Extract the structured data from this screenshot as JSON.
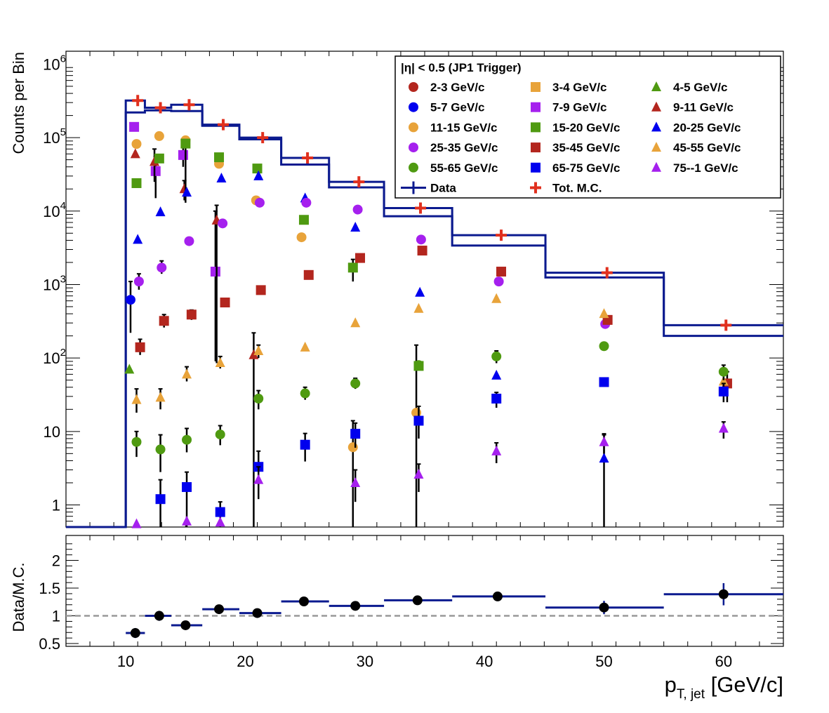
{
  "chart_data": [
    {
      "type": "scatter",
      "panel": "top",
      "title": "",
      "ylabel": "Counts per Bin",
      "yscale": "log",
      "xlim": [
        5,
        65
      ],
      "ylim": [
        0.5,
        1500000
      ],
      "y_ticks": [
        {
          "value": 1,
          "base": "1",
          "exp": ""
        },
        {
          "value": 10,
          "base": "10",
          "exp": ""
        },
        {
          "value": 100,
          "base": "10",
          "exp": "2"
        },
        {
          "value": 1000,
          "base": "10",
          "exp": "3"
        },
        {
          "value": 10000,
          "base": "10",
          "exp": "4"
        },
        {
          "value": 100000,
          "base": "10",
          "exp": "5"
        },
        {
          "value": 1000000,
          "base": "10",
          "exp": "6"
        }
      ],
      "legend": {
        "header": "|η| < 0.5 (JP1 Trigger)",
        "position": "top-right",
        "entries": [
          {
            "label": "2-3 GeV/c",
            "marker": "circle",
            "color": "#b3261e"
          },
          {
            "label": "3-4 GeV/c",
            "marker": "square",
            "color": "#e8a33a"
          },
          {
            "label": "4-5 GeV/c",
            "marker": "triangle",
            "color": "#4f9a11"
          },
          {
            "label": "5-7 GeV/c",
            "marker": "circle",
            "color": "#0000ee"
          },
          {
            "label": "7-9 GeV/c",
            "marker": "square",
            "color": "#a520ee"
          },
          {
            "label": "9-11 GeV/c",
            "marker": "triangle",
            "color": "#b3261e"
          },
          {
            "label": "11-15 GeV/c",
            "marker": "circle",
            "color": "#e8a33a"
          },
          {
            "label": "15-20 GeV/c",
            "marker": "square",
            "color": "#4f9a11"
          },
          {
            "label": "20-25 GeV/c",
            "marker": "triangle",
            "color": "#0000ee"
          },
          {
            "label": "25-35 GeV/c",
            "marker": "circle",
            "color": "#a520ee"
          },
          {
            "label": "35-45 GeV/c",
            "marker": "square",
            "color": "#b3261e"
          },
          {
            "label": "45-55 GeV/c",
            "marker": "triangle",
            "color": "#e8a33a"
          },
          {
            "label": "55-65 GeV/c",
            "marker": "circle",
            "color": "#4f9a11"
          },
          {
            "label": "65-75 GeV/c",
            "marker": "square",
            "color": "#0000ee"
          },
          {
            "label": "75--1 GeV/c",
            "marker": "triangle",
            "color": "#a520ee"
          },
          {
            "label": "Data",
            "marker": "cross",
            "color": "#0b1a8f"
          },
          {
            "label": "Tot. M.C.",
            "marker": "plus",
            "color": "#e0301e"
          }
        ]
      },
      "data_hist": {
        "name": "Data",
        "color": "#0b1a8f",
        "bins": [
          {
            "lo": 5.0,
            "hi": 10.0,
            "value": 0.5
          },
          {
            "lo": 10.0,
            "hi": 11.6,
            "value": 220000
          },
          {
            "lo": 11.6,
            "hi": 13.8,
            "value": 235000
          },
          {
            "lo": 13.8,
            "hi": 16.4,
            "value": 230000
          },
          {
            "lo": 16.4,
            "hi": 19.5,
            "value": 145000
          },
          {
            "lo": 19.5,
            "hi": 23.0,
            "value": 95000
          },
          {
            "lo": 23.0,
            "hi": 27.0,
            "value": 43000
          },
          {
            "lo": 27.0,
            "hi": 31.6,
            "value": 21000
          },
          {
            "lo": 31.6,
            "hi": 37.3,
            "value": 8500
          },
          {
            "lo": 37.3,
            "hi": 45.1,
            "value": 3400
          },
          {
            "lo": 45.1,
            "hi": 55.0,
            "value": 1250
          },
          {
            "lo": 55.0,
            "hi": 65.0,
            "value": 200
          }
        ],
        "mc_bins": [
          {
            "lo": 10.0,
            "hi": 11.6,
            "value": 320000
          },
          {
            "lo": 11.6,
            "hi": 13.8,
            "value": 255000
          },
          {
            "lo": 13.8,
            "hi": 16.4,
            "value": 280000
          },
          {
            "lo": 16.4,
            "hi": 19.5,
            "value": 150000
          },
          {
            "lo": 19.5,
            "hi": 23.0,
            "value": 100000
          },
          {
            "lo": 23.0,
            "hi": 27.0,
            "value": 53000
          },
          {
            "lo": 27.0,
            "hi": 31.6,
            "value": 25000
          },
          {
            "lo": 31.6,
            "hi": 37.3,
            "value": 11000
          },
          {
            "lo": 37.3,
            "hi": 45.1,
            "value": 4700
          },
          {
            "lo": 45.1,
            "hi": 55.0,
            "value": 1450
          },
          {
            "lo": 55.0,
            "hi": 65.0,
            "value": 280
          }
        ]
      },
      "series": [
        {
          "name": "2-3 GeV/c",
          "marker": "circle",
          "color": "#b3261e",
          "x": [],
          "y": []
        },
        {
          "name": "3-4 GeV/c",
          "marker": "square",
          "color": "#e8a33a",
          "x": [],
          "y": []
        },
        {
          "name": "4-5 GeV/c",
          "marker": "triangle",
          "color": "#4f9a11",
          "x": [
            10.3
          ],
          "y": [
            70
          ]
        },
        {
          "name": "5-7 GeV/c",
          "marker": "circle",
          "color": "#0000ee",
          "x": [
            10.4
          ],
          "y": [
            620
          ],
          "err": [
            [
              220,
              1100
            ]
          ]
        },
        {
          "name": "7-9 GeV/c",
          "marker": "square",
          "color": "#a520ee",
          "x": [
            10.7,
            12.5,
            14.8,
            17.5
          ],
          "y": [
            140000,
            35000,
            58000,
            1500
          ],
          "err": [
            null,
            [
              15000,
              55000
            ],
            [
              40000,
              75000
            ],
            [
              90,
              10000
            ]
          ]
        },
        {
          "name": "9-11 GeV/c",
          "marker": "triangle",
          "color": "#b3261e",
          "x": [
            10.8,
            12.4,
            14.9,
            17.6,
            20.7
          ],
          "y": [
            60000,
            47000,
            20000,
            7500,
            110
          ],
          "err": [
            null,
            [
              25000,
              70000
            ],
            [
              14000,
              26000
            ],
            [
              85,
              12000
            ],
            [
              0.5,
              220
            ]
          ]
        },
        {
          "name": "11-15 GeV/c",
          "marker": "circle",
          "color": "#e8a33a",
          "x": [
            10.9,
            12.8,
            15.0,
            17.8,
            20.9,
            24.7,
            29.0,
            34.3
          ],
          "y": [
            82000,
            105000,
            92000,
            44000,
            14000,
            4400,
            6.1,
            18
          ],
          "err": [
            null,
            null,
            [
              13000,
              100000
            ],
            null,
            null,
            null,
            [
              0.5,
              14
            ],
            [
              0.5,
              150
            ]
          ]
        },
        {
          "name": "15-20 GeV/c",
          "marker": "square",
          "color": "#4f9a11",
          "x": [
            10.9,
            12.8,
            15.0,
            17.8,
            21.0,
            24.9,
            29.0,
            34.5
          ],
          "y": [
            24000,
            52000,
            83000,
            54000,
            38000,
            7600,
            1700,
            78
          ],
          "err": [
            null,
            null,
            null,
            null,
            null,
            null,
            [
              1100,
              2200
            ],
            null
          ]
        },
        {
          "name": "20-25 GeV/c",
          "marker": "triangle",
          "color": "#0000ee",
          "x": [
            11.0,
            12.9,
            15.1,
            18.0,
            21.1,
            25.0,
            29.2,
            34.6,
            41.0,
            50.0
          ],
          "y": [
            4100,
            9700,
            18000,
            28000,
            30000,
            15000,
            6000,
            780,
            58,
            4.3
          ],
          "err": [
            null,
            null,
            null,
            null,
            null,
            null,
            null,
            null,
            null,
            [
              0.5,
              9
            ]
          ]
        },
        {
          "name": "25-35 GeV/c",
          "marker": "circle",
          "color": "#a520ee",
          "x": [
            11.1,
            13.0,
            15.3,
            18.1,
            21.2,
            25.1,
            29.4,
            34.7,
            41.2,
            50.1
          ],
          "y": [
            1100,
            1700,
            3900,
            6800,
            13000,
            13000,
            10500,
            4100,
            1100,
            290
          ],
          "err": [
            [
              850,
              1400
            ],
            [
              1400,
              2100
            ],
            null,
            null,
            null,
            null,
            null,
            null,
            null,
            null
          ]
        },
        {
          "name": "35-45 GeV/c",
          "marker": "square",
          "color": "#b3261e",
          "x": [
            11.2,
            13.2,
            15.5,
            18.3,
            21.3,
            25.3,
            29.6,
            34.8,
            41.4,
            50.3,
            60.3
          ],
          "y": [
            140,
            320,
            390,
            570,
            840,
            1350,
            2300,
            2900,
            1500,
            330,
            45
          ],
          "err": [
            [
              110,
              180
            ],
            [
              260,
              390
            ],
            [
              330,
              450
            ],
            null,
            null,
            null,
            null,
            null,
            null,
            null,
            [
              25,
              65
            ]
          ]
        },
        {
          "name": "45-55 GeV/c",
          "marker": "triangle",
          "color": "#e8a33a",
          "x": [
            10.9,
            12.9,
            15.1,
            17.9,
            21.1,
            25.0,
            29.2,
            34.5,
            41.0,
            50.0,
            60.0
          ],
          "y": [
            27,
            29,
            60,
            86,
            125,
            140,
            300,
            470,
            640,
            400,
            48
          ],
          "err": [
            [
              18,
              38
            ],
            [
              20,
              38
            ],
            [
              48,
              76
            ],
            [
              72,
              105
            ],
            [
              100,
              150
            ],
            null,
            null,
            null,
            null,
            null,
            null
          ]
        },
        {
          "name": "55-65 GeV/c",
          "marker": "circle",
          "color": "#4f9a11",
          "x": [
            10.9,
            12.9,
            15.1,
            17.9,
            21.1,
            25.0,
            29.2,
            34.5,
            41.0,
            50.0,
            60.0
          ],
          "y": [
            7.2,
            5.7,
            7.7,
            9.1,
            28,
            33,
            45,
            80,
            105,
            145,
            65
          ],
          "err": [
            [
              4.5,
              10
            ],
            [
              2.8,
              9
            ],
            [
              5.2,
              11
            ],
            [
              6.5,
              12
            ],
            [
              20,
              36
            ],
            [
              27,
              40
            ],
            [
              38,
              53
            ],
            null,
            [
              85,
              125
            ],
            null,
            [
              50,
              80
            ]
          ]
        },
        {
          "name": "65-75 GeV/c",
          "marker": "square",
          "color": "#0000ee",
          "x": [
            12.9,
            15.1,
            17.9,
            21.1,
            25.0,
            29.2,
            34.5,
            41.0,
            50.0,
            60.0
          ],
          "y": [
            1.2,
            1.75,
            0.8,
            3.3,
            6.6,
            9.3,
            14,
            28,
            47,
            35
          ],
          "err": [
            [
              0.5,
              2.2
            ],
            [
              0.5,
              2.8
            ],
            [
              0.5,
              1.1
            ],
            [
              1.8,
              5.4
            ],
            [
              3.9,
              9.4
            ],
            [
              6,
              13
            ],
            [
              8,
              22
            ],
            [
              21,
              34
            ],
            null,
            [
              25,
              45
            ]
          ]
        },
        {
          "name": "75--1 GeV/c",
          "marker": "triangle",
          "color": "#a520ee",
          "x": [
            10.9,
            15.1,
            17.9,
            21.1,
            29.2,
            34.5,
            41.0,
            50.0,
            60.0
          ],
          "y": [
            0.55,
            0.6,
            0.58,
            2.2,
            2.0,
            2.6,
            5.4,
            7.2,
            11
          ],
          "err": [
            null,
            null,
            null,
            [
              1.2,
              3.3
            ],
            [
              1.1,
              3
            ],
            [
              1.5,
              3.6
            ],
            [
              3.7,
              7
            ],
            [
              5,
              9.3
            ],
            [
              8,
              13.5
            ]
          ]
        }
      ]
    },
    {
      "type": "scatter",
      "panel": "bottom",
      "xlabel_main": "p",
      "xlabel_sub": "T, jet",
      "xlabel_unit": " [GeV/c]",
      "ylabel": "Data/M.C.",
      "xlim": [
        5,
        65
      ],
      "ylim": [
        0.45,
        2.45
      ],
      "x_ticks": [
        "10",
        "20",
        "30",
        "40",
        "50",
        "60"
      ],
      "x_tick_values": [
        10,
        20,
        30,
        40,
        50,
        60
      ],
      "y_ticks": [
        "0.5",
        "1",
        "1.5",
        "2"
      ],
      "y_tick_values": [
        0.5,
        1,
        1.5,
        2
      ],
      "reference_line": 1,
      "ratio": [
        {
          "lo": 10.0,
          "hi": 11.6,
          "x": 10.8,
          "y": 0.69,
          "e": 0.09
        },
        {
          "lo": 11.6,
          "hi": 13.8,
          "x": 12.8,
          "y": 1.0,
          "e": 0.09
        },
        {
          "lo": 13.8,
          "hi": 16.4,
          "x": 15.0,
          "y": 0.83,
          "e": 0.08
        },
        {
          "lo": 16.4,
          "hi": 19.5,
          "x": 17.8,
          "y": 1.12,
          "e": 0.04
        },
        {
          "lo": 19.5,
          "hi": 23.0,
          "x": 21.0,
          "y": 1.05,
          "e": 0.04
        },
        {
          "lo": 23.0,
          "hi": 27.0,
          "x": 24.9,
          "y": 1.26,
          "e": 0.04
        },
        {
          "lo": 27.0,
          "hi": 31.6,
          "x": 29.2,
          "y": 1.18,
          "e": 0.04
        },
        {
          "lo": 31.6,
          "hi": 37.3,
          "x": 34.4,
          "y": 1.28,
          "e": 0.05
        },
        {
          "lo": 37.3,
          "hi": 45.1,
          "x": 41.1,
          "y": 1.35,
          "e": 0.08
        },
        {
          "lo": 45.1,
          "hi": 55.0,
          "x": 50.0,
          "y": 1.15,
          "e": 0.12
        },
        {
          "lo": 55.0,
          "hi": 65.0,
          "x": 60.0,
          "y": 1.39,
          "e": 0.2
        }
      ]
    }
  ]
}
